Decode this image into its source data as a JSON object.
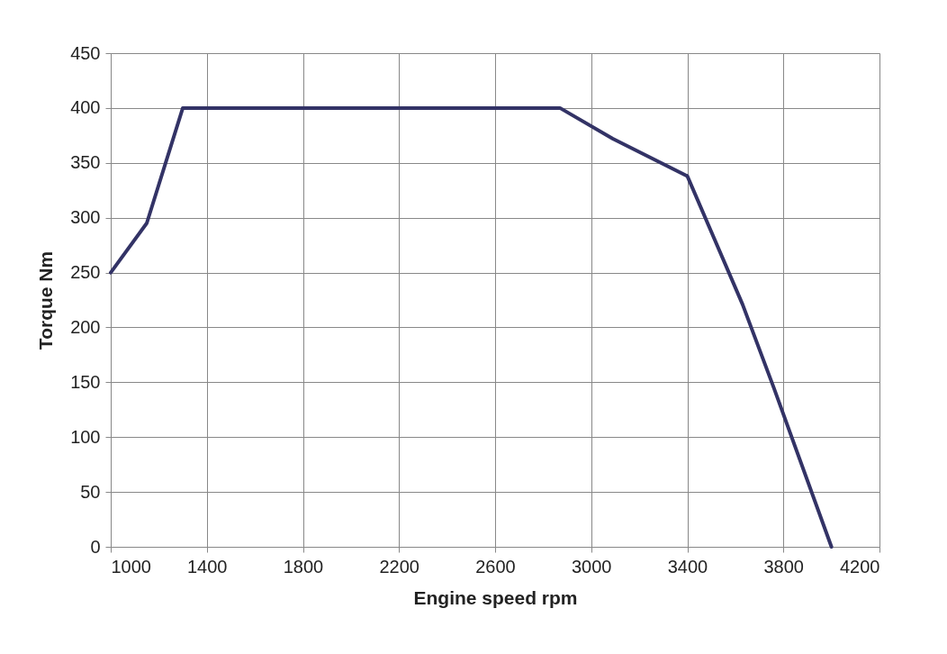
{
  "chart_data": {
    "type": "line",
    "xlabel": "Engine speed rpm",
    "ylabel": "Torque Nm",
    "x": [
      1000,
      1150,
      1300,
      2870,
      3090,
      3400,
      3630,
      3760,
      4000
    ],
    "series": [
      {
        "color": "#333366",
        "values": [
          250,
          295,
          400,
          400,
          372,
          338,
          221,
          145,
          0
        ]
      }
    ],
    "xlim": [
      1000,
      4200
    ],
    "xticks": [
      1000,
      1400,
      1800,
      2200,
      2600,
      3000,
      3400,
      3800,
      4200
    ],
    "ylim": [
      0,
      450
    ],
    "yticks": [
      0,
      50,
      100,
      150,
      200,
      250,
      300,
      350,
      400,
      450
    ],
    "grid": true,
    "marker": "none",
    "line_style": "solid"
  }
}
